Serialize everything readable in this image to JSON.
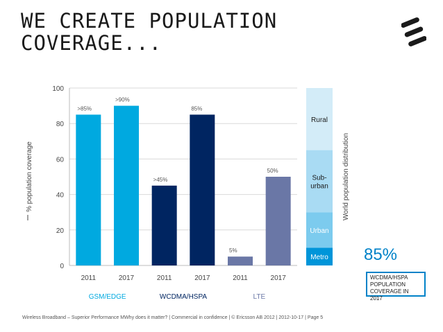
{
  "title": {
    "line1": "WE CREATE POPULATION",
    "line2": "COVERAGE..."
  },
  "colors": {
    "gsm": "#00a9e0",
    "wcdma": "#002561",
    "lte": "#6a77a6",
    "badge": "#0082c8"
  },
  "chart_data": {
    "type": "bar",
    "ylabel": "% population coverage",
    "ylim": [
      0,
      100
    ],
    "yticks": [
      0,
      20,
      40,
      60,
      80,
      100
    ],
    "grid": true,
    "bars": [
      {
        "group": "GSM/EDGE",
        "year": "2011",
        "value": 85,
        "label": ">85%",
        "color": "#00a9e0"
      },
      {
        "group": "GSM/EDGE",
        "year": "2017",
        "value": 90,
        "label": ">90%",
        "color": "#00a9e0"
      },
      {
        "group": "WCDMA/HSPA",
        "year": "2011",
        "value": 45,
        "label": ">45%",
        "color": "#002561"
      },
      {
        "group": "WCDMA/HSPA",
        "year": "2017",
        "value": 85,
        "label": "85%",
        "color": "#002561"
      },
      {
        "group": "LTE",
        "year": "2011",
        "value": 5,
        "label": "5%",
        "color": "#6a77a6"
      },
      {
        "group": "LTE",
        "year": "2017",
        "value": 50,
        "label": "50%",
        "color": "#6a77a6"
      }
    ],
    "groups": [
      {
        "name": "GSM/EDGE",
        "color": "#00a9e0"
      },
      {
        "name": "WCDMA/HSPA",
        "color": "#002561"
      },
      {
        "name": "LTE",
        "color": "#6a77a6"
      }
    ],
    "distribution": {
      "label": "World population distribution",
      "segments": [
        {
          "name": "Metro",
          "from": 0,
          "to": 10,
          "color": "#0095d9",
          "text_color": "#ffffff"
        },
        {
          "name": "Urban",
          "from": 10,
          "to": 30,
          "color": "#7ccbee",
          "text_color": "#ffffff"
        },
        {
          "name": "Sub-\nurban",
          "from": 30,
          "to": 65,
          "color": "#a9dbf3",
          "text_color": "#1a1a1a"
        },
        {
          "name": "Rural",
          "from": 65,
          "to": 100,
          "color": "#d3ecf8",
          "text_color": "#1a1a1a"
        }
      ]
    }
  },
  "badge": {
    "value": "85%",
    "lines": [
      "WCDMA/HSPA",
      "POPULATION",
      "COVERAGE IN 2017"
    ]
  },
  "footer": {
    "items": [
      "Wireless Broadband – Superior Performance MWhy does it matter? ",
      " Commercial in confidence ",
      " © Ericsson AB 2012 ",
      " 2012-10-17 ",
      " Page 5"
    ]
  }
}
